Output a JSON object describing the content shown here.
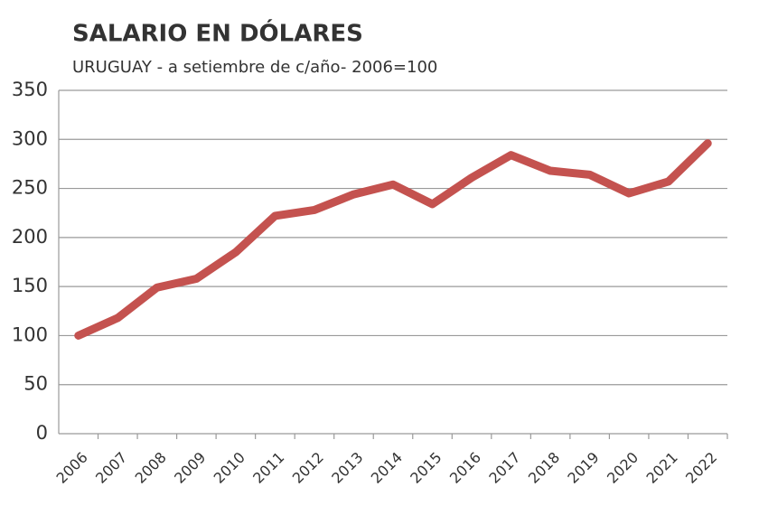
{
  "chart_data": {
    "type": "line",
    "title": "SALARIO EN DÓLARES",
    "subtitle": "URUGUAY - a setiembre de c/año- 2006=100",
    "categories": [
      "2006",
      "2007",
      "2008",
      "2009",
      "2010",
      "2011",
      "2012",
      "2013",
      "2014",
      "2015",
      "2016",
      "2017",
      "2018",
      "2019",
      "2020",
      "2021",
      "2022"
    ],
    "values": [
      100,
      118,
      149,
      158,
      185,
      222,
      228,
      244,
      254,
      234,
      261,
      284,
      268,
      264,
      245,
      257,
      296
    ],
    "color": "#c4524f",
    "ylim": [
      0,
      350
    ],
    "yticks": [
      0,
      50,
      100,
      150,
      200,
      250,
      300,
      350
    ],
    "grid": true
  }
}
